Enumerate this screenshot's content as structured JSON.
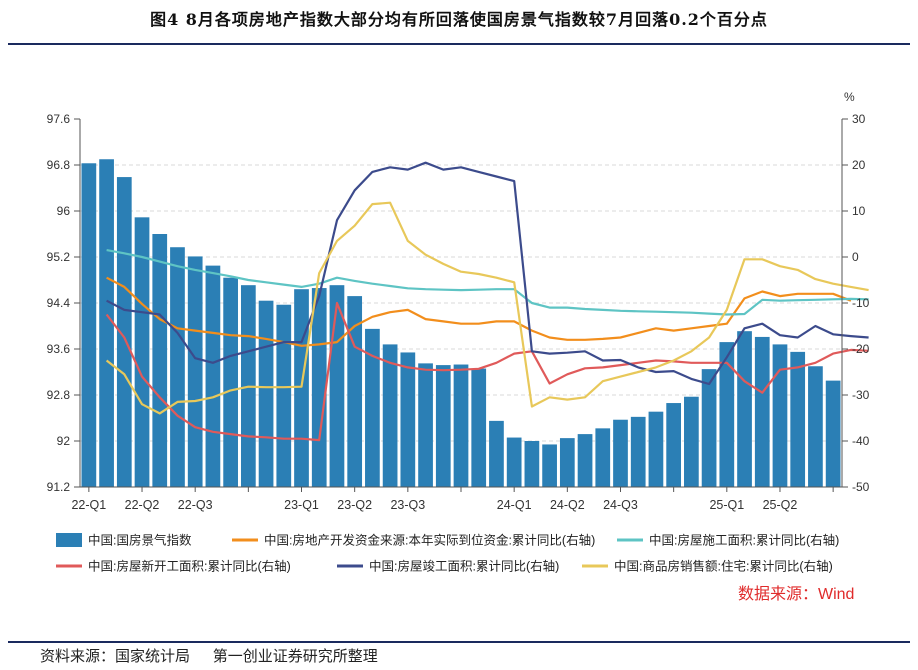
{
  "title": "图4    8月各项房地产指数大部分均有所回落使国房景气指数较7月回落0.2个百分点",
  "footer": {
    "source_label": "资料来源：国家统计局",
    "organizer": "第一创业证券研究所整理"
  },
  "source_note": "数据来源：Wind",
  "chart_data": {
    "type": "bar+line",
    "left_axis": {
      "min": 91.2,
      "max": 97.6,
      "ticks": [
        "97.6",
        "96.8",
        "96",
        "95.2",
        "94.4",
        "93.6",
        "92.8",
        "92",
        "91.2"
      ]
    },
    "right_axis": {
      "unit": "%",
      "min": -50,
      "max": 30,
      "ticks": [
        "30",
        "20",
        "10",
        "0",
        "-10",
        "-20",
        "-30",
        "-40",
        "-50"
      ]
    },
    "x_labels": [
      "22-Q1",
      "22-Q2",
      "22-Q3",
      "23-Q1",
      "23-Q2",
      "23-Q3",
      "24-Q1",
      "24-Q2",
      "24-Q3",
      "25-Q1",
      "25-Q2"
    ],
    "colors": {
      "bar": "#2b7fb5",
      "funding": "#f28e1c",
      "construction": "#5ec4c4",
      "new_start": "#e05a5a",
      "completion": "#3c4b8c",
      "sales": "#e8c85a"
    },
    "bars": {
      "name": "中国:国房景气指数",
      "values": [
        96.83,
        96.9,
        96.59,
        95.89,
        95.6,
        95.37,
        95.21,
        95.05,
        94.84,
        94.71,
        94.44,
        94.37,
        94.64,
        94.66,
        94.71,
        94.52,
        93.95,
        93.68,
        93.54,
        93.35,
        93.32,
        93.33,
        93.26,
        92.35,
        92.06,
        92.0,
        91.94,
        92.05,
        92.12,
        92.22,
        92.37,
        92.42,
        92.51,
        92.66,
        92.77,
        93.25,
        93.72,
        93.91,
        93.81,
        93.68,
        93.55,
        93.3,
        93.05
      ]
    },
    "series": [
      {
        "name": "中国:房地产开发资金来源:本年实际到位资金:累计同比(右轴)",
        "key": "funding",
        "start": 1,
        "values": [
          -4.5,
          -6.5,
          -10.2,
          -13.5,
          -15.5,
          -16,
          -16.5,
          -17,
          -17.2,
          -17.8,
          -18.5,
          -19.3,
          -19,
          -18.5,
          -15,
          -13,
          -12,
          -11.5,
          -13.5,
          -14,
          -14.5,
          -14.5,
          -14,
          -14,
          -16,
          -17.5,
          -18,
          -18,
          -17.8,
          -17.5,
          -16.5,
          -15.5,
          -16,
          -15.5,
          -15,
          -14.5,
          -9,
          -7.5,
          -8.5,
          -8,
          -8,
          -8,
          -9.5
        ]
      },
      {
        "name": "中国:房屋施工面积:累计同比(右轴)",
        "key": "construction",
        "start": 1,
        "values": [
          1.5,
          0.8,
          0,
          -1,
          -2,
          -2.8,
          -3.5,
          -4.2,
          -5,
          -5.5,
          -6,
          -6.5,
          -5.8,
          -4.5,
          -5.2,
          -5.8,
          -6.3,
          -6.8,
          -7,
          -7.1,
          -7.2,
          -7.1,
          -7,
          -7,
          -10,
          -11,
          -11,
          -11.3,
          -11.5,
          -11.7,
          -11.8,
          -11.9,
          -12.0,
          -12.1,
          -12.3,
          -12.5,
          -12.4,
          -9.3,
          -9.5,
          -9.4,
          -9.3,
          -9.2,
          -9.1,
          -9.2
        ]
      },
      {
        "name": "中国:房屋新开工面积:累计同比(右轴)",
        "key": "new_start",
        "start": 1,
        "values": [
          -12.5,
          -17.5,
          -26,
          -30.5,
          -34.5,
          -37,
          -38,
          -38.5,
          -39,
          -39.2,
          -39.5,
          -39.5,
          -39.8,
          -10,
          -19.5,
          -21.5,
          -23,
          -24,
          -24.5,
          -24.6,
          -24.5,
          -24.3,
          -23,
          -21,
          -20.5,
          -27.5,
          -25.5,
          -24.2,
          -24,
          -23.5,
          -23,
          -22.5,
          -22.7,
          -23,
          -23,
          -23,
          -27,
          -29.5,
          -24.5,
          -24,
          -23,
          -21,
          -20.2,
          -20.4
        ]
      },
      {
        "name": "中国:房屋竣工面积:累计同比(右轴)",
        "key": "completion",
        "start": 1,
        "values": [
          -9.5,
          -11.5,
          -12,
          -12.5,
          -16.5,
          -22,
          -23,
          -21.5,
          -20.5,
          -19.5,
          -18.5,
          -18.5,
          -8.5,
          8,
          14.5,
          18.5,
          19.5,
          19,
          20.5,
          19,
          19.5,
          18.5,
          17.5,
          16.5,
          -20.5,
          -21,
          -20.8,
          -20.5,
          -22.5,
          -22.4,
          -24,
          -25,
          -24.8,
          -26.5,
          -27.6,
          -21.8,
          -15.5,
          -14.5,
          -17,
          -17.5,
          -15,
          -16.8,
          -17.2,
          -17.5
        ]
      },
      {
        "name": "中国:商品房销售额:住宅:累计同比(右轴)",
        "key": "sales",
        "start": 1,
        "values": [
          -22.5,
          -25.5,
          -32,
          -34,
          -31.5,
          -31.3,
          -30.5,
          -29,
          -28.2,
          -28.3,
          -28.3,
          -28.2,
          -3.5,
          3.5,
          6.8,
          11.5,
          11.8,
          3.5,
          0.5,
          -1.5,
          -3.2,
          -3.7,
          -4.5,
          -5.5,
          -32.5,
          -30.5,
          -31,
          -30.5,
          -27,
          -26,
          -25,
          -24,
          -22.5,
          -20.5,
          -17.5,
          -11.5,
          -0.5,
          -0.5,
          -2,
          -2.8,
          -4.8,
          -5.8,
          -6.5,
          -7.2
        ]
      }
    ]
  }
}
